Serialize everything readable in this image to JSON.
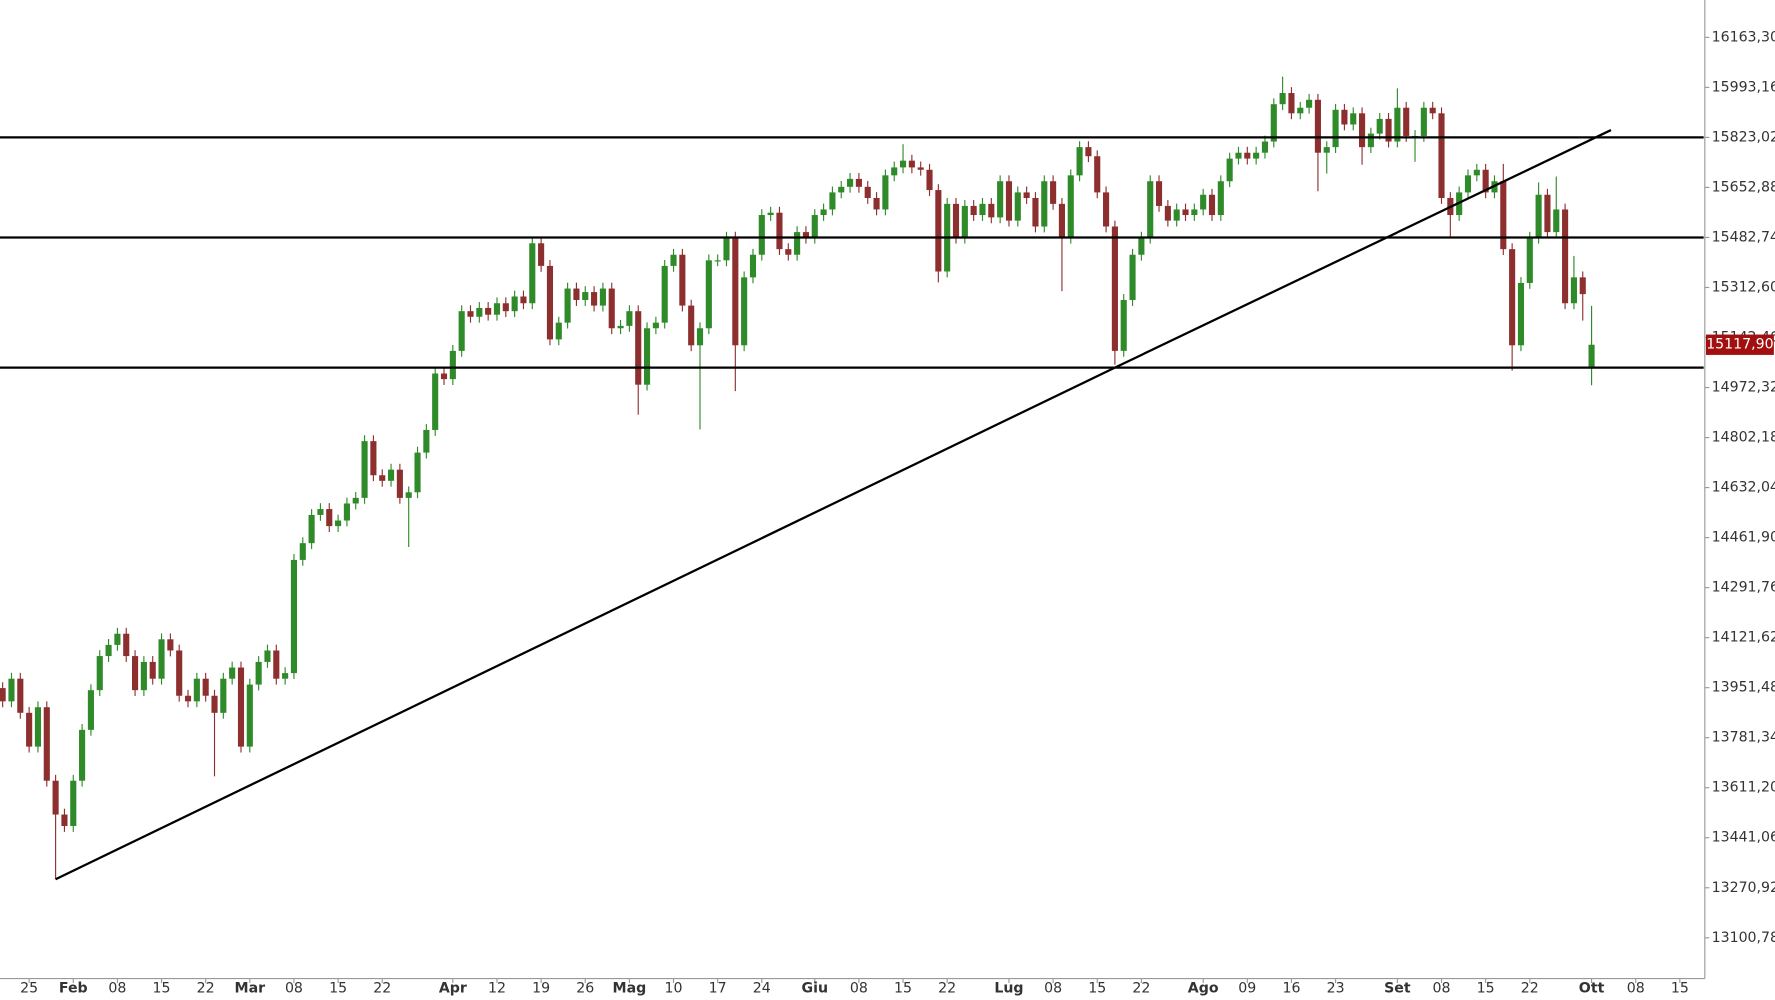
{
  "chart_data": {
    "type": "candlestick",
    "up_color": "#2f8a2a",
    "down_color": "#8e2f2f",
    "line_color": "#000000",
    "xlim": [
      -0.3,
      192.7
    ],
    "ylim": [
      12962.3,
      16290.4
    ],
    "yticks": [
      {
        "value": 13100.78,
        "label": "13100,78"
      },
      {
        "value": 13270.92,
        "label": "13270,92"
      },
      {
        "value": 13441.06,
        "label": "13441,06"
      },
      {
        "value": 13611.2,
        "label": "13611,20"
      },
      {
        "value": 13781.34,
        "label": "13781,34"
      },
      {
        "value": 13951.48,
        "label": "13951,48"
      },
      {
        "value": 14121.62,
        "label": "14121,62"
      },
      {
        "value": 14291.76,
        "label": "14291,76"
      },
      {
        "value": 14461.9,
        "label": "14461,90"
      },
      {
        "value": 14632.04,
        "label": "14632,04"
      },
      {
        "value": 14802.18,
        "label": "14802,18"
      },
      {
        "value": 14972.32,
        "label": "14972,32"
      },
      {
        "value": 15142.46,
        "label": "15142,46"
      },
      {
        "value": 15312.6,
        "label": "15312,60"
      },
      {
        "value": 15482.74,
        "label": "15482,74"
      },
      {
        "value": 15652.88,
        "label": "15652,88"
      },
      {
        "value": 15823.02,
        "label": "15823,02"
      },
      {
        "value": 15993.16,
        "label": "15993,16"
      },
      {
        "value": 16163.3,
        "label": "16163,30"
      }
    ],
    "xticks": [
      {
        "value": 3,
        "label": "25"
      },
      {
        "value": 8,
        "label": "Feb"
      },
      {
        "value": 13,
        "label": "08"
      },
      {
        "value": 18,
        "label": "15"
      },
      {
        "value": 23,
        "label": "22"
      },
      {
        "value": 28,
        "label": "Mar"
      },
      {
        "value": 33,
        "label": "08"
      },
      {
        "value": 38,
        "label": "15"
      },
      {
        "value": 43,
        "label": "22"
      },
      {
        "value": 51,
        "label": "Apr"
      },
      {
        "value": 56,
        "label": "12"
      },
      {
        "value": 61,
        "label": "19"
      },
      {
        "value": 66,
        "label": "26"
      },
      {
        "value": 71,
        "label": "Mag"
      },
      {
        "value": 76,
        "label": "10"
      },
      {
        "value": 81,
        "label": "17"
      },
      {
        "value": 86,
        "label": "24"
      },
      {
        "value": 92,
        "label": "Giu"
      },
      {
        "value": 97,
        "label": "08"
      },
      {
        "value": 102,
        "label": "15"
      },
      {
        "value": 107,
        "label": "22"
      },
      {
        "value": 114,
        "label": "Lug"
      },
      {
        "value": 119,
        "label": "08"
      },
      {
        "value": 124,
        "label": "15"
      },
      {
        "value": 129,
        "label": "22"
      },
      {
        "value": 136,
        "label": "Ago"
      },
      {
        "value": 141,
        "label": "09"
      },
      {
        "value": 146,
        "label": "16"
      },
      {
        "value": 151,
        "label": "23"
      },
      {
        "value": 158,
        "label": "Set"
      },
      {
        "value": 163,
        "label": "08"
      },
      {
        "value": 168,
        "label": "15"
      },
      {
        "value": 173,
        "label": "22"
      },
      {
        "value": 180,
        "label": "Ott"
      },
      {
        "value": 185,
        "label": "08"
      },
      {
        "value": 190,
        "label": "15"
      }
    ],
    "open": [
      13950,
      13905,
      13982,
      13866,
      13751,
      13885,
      13635,
      13520,
      13481,
      13635,
      13808,
      13943,
      14059,
      14097,
      14135,
      14059,
      13943,
      14039,
      13982,
      14116,
      14078,
      13924,
      13905,
      13982,
      13924,
      13866,
      13982,
      14020,
      13751,
      13962,
      14039,
      14078,
      13982,
      14001,
      14386,
      14443,
      14539,
      14559,
      14501,
      14520,
      14578,
      14597,
      14790,
      14674,
      14655,
      14693,
      14597,
      14616,
      14751,
      14828,
      15020,
      15001,
      15097,
      15232,
      15213,
      15243,
      15220,
      15259,
      15232,
      15282,
      15259,
      15463,
      15386,
      15136,
      15193,
      15309,
      15270,
      15297,
      15251,
      15309,
      15174,
      15182,
      15232,
      14982,
      15174,
      15193,
      15386,
      15424,
      15251,
      15116,
      15174,
      15405,
      15405,
      15482,
      15116,
      15347,
      15424,
      15559,
      15567,
      15443,
      15424,
      15501,
      15482,
      15559,
      15578,
      15636,
      15655,
      15682,
      15655,
      15617,
      15578,
      15694,
      15721,
      15744,
      15721,
      15713,
      15644,
      15367,
      15597,
      15482,
      15590,
      15559,
      15597,
      15551,
      15674,
      15540,
      15636,
      15617,
      15520,
      15674,
      15597,
      15482,
      15694,
      15790,
      15759,
      15636,
      15520,
      15097,
      15270,
      15424,
      15482,
      15674,
      15590,
      15540,
      15578,
      15559,
      15578,
      15628,
      15559,
      15674,
      15751,
      15771,
      15751,
      15771,
      15809,
      15936,
      15974,
      15905,
      15924,
      15951,
      15771,
      15790,
      15917,
      15867,
      15905,
      15790,
      15836,
      15886,
      15809,
      15924,
      15828,
      15828,
      15924,
      15905,
      15617,
      15559,
      15636,
      15694,
      15713,
      15636,
      15674,
      15443,
      15116,
      15328,
      15482,
      15628,
      15501,
      15578,
      15259,
      15347,
      15040
    ],
    "high": [
      13970,
      14002,
      14002,
      13886,
      13905,
      13905,
      13655,
      13540,
      13655,
      13828,
      13963,
      14079,
      14117,
      14155,
      14155,
      14079,
      14059,
      14059,
      14136,
      14136,
      14098,
      13944,
      14002,
      14002,
      13944,
      14002,
      14040,
      14040,
      13982,
      14059,
      14098,
      14098,
      14021,
      14406,
      14463,
      14559,
      14579,
      14579,
      14540,
      14598,
      14617,
      14810,
      14810,
      14694,
      14713,
      14713,
      14636,
      14771,
      14848,
      15040,
      15040,
      15117,
      15252,
      15252,
      15263,
      15263,
      15279,
      15279,
      15302,
      15302,
      15483,
      15483,
      15406,
      15213,
      15329,
      15329,
      15317,
      15317,
      15329,
      15329,
      15202,
      15252,
      15252,
      15194,
      15213,
      15406,
      15444,
      15444,
      15271,
      15194,
      15425,
      15425,
      15502,
      15502,
      15367,
      15444,
      15579,
      15587,
      15587,
      15463,
      15521,
      15521,
      15579,
      15598,
      15656,
      15675,
      15702,
      15702,
      15675,
      15637,
      15714,
      15741,
      15800,
      15764,
      15741,
      15733,
      15664,
      15617,
      15617,
      15610,
      15610,
      15617,
      15617,
      15694,
      15694,
      15656,
      15656,
      15637,
      15694,
      15694,
      15617,
      15714,
      15810,
      15810,
      15779,
      15656,
      15540,
      15290,
      15444,
      15502,
      15694,
      15694,
      15610,
      15598,
      15598,
      15598,
      15648,
      15648,
      15694,
      15771,
      15791,
      15791,
      15791,
      15829,
      15956,
      16030,
      15994,
      15944,
      15971,
      15971,
      15810,
      15937,
      15937,
      15925,
      15925,
      15856,
      15906,
      15906,
      15990,
      15944,
      15848,
      15944,
      15944,
      15925,
      15637,
      15656,
      15714,
      15733,
      15733,
      15694,
      15733,
      15463,
      15348,
      15502,
      15670,
      15648,
      15690,
      15598,
      15420,
      15367,
      15250
    ],
    "low": [
      13885,
      13885,
      13846,
      13731,
      13731,
      13615,
      13300,
      13461,
      13461,
      13615,
      13788,
      13923,
      14039,
      14077,
      14039,
      13923,
      13923,
      13962,
      13962,
      14058,
      13904,
      13885,
      13885,
      13904,
      13650,
      13846,
      13962,
      13731,
      13731,
      13942,
      14019,
      13962,
      13962,
      13981,
      14366,
      14423,
      14519,
      14481,
      14481,
      14500,
      14558,
      14577,
      14654,
      14635,
      14635,
      14577,
      14430,
      14596,
      14731,
      14808,
      14981,
      14981,
      15077,
      15193,
      15193,
      15200,
      15200,
      15212,
      15212,
      15239,
      15239,
      15366,
      15116,
      15116,
      15173,
      15250,
      15250,
      15231,
      15231,
      15154,
      15154,
      15162,
      14880,
      14962,
      15154,
      15173,
      15366,
      15231,
      15096,
      14830,
      15154,
      15385,
      15385,
      14960,
      15096,
      15327,
      15404,
      15539,
      15423,
      15404,
      15404,
      15462,
      15462,
      15539,
      15558,
      15616,
      15635,
      15635,
      15597,
      15558,
      15558,
      15674,
      15701,
      15701,
      15693,
      15624,
      15330,
      15347,
      15462,
      15462,
      15539,
      15539,
      15531,
      15531,
      15520,
      15520,
      15597,
      15500,
      15500,
      15577,
      15300,
      15462,
      15674,
      15739,
      15616,
      15500,
      15050,
      15077,
      15250,
      15404,
      15462,
      15570,
      15520,
      15520,
      15539,
      15539,
      15558,
      15539,
      15539,
      15654,
      15731,
      15731,
      15731,
      15751,
      15789,
      15916,
      15885,
      15885,
      15904,
      15640,
      15700,
      15770,
      15847,
      15847,
      15730,
      15770,
      15816,
      15789,
      15789,
      15808,
      15740,
      15808,
      15885,
      15597,
      15480,
      15539,
      15616,
      15674,
      15616,
      15616,
      15423,
      15030,
      15096,
      15308,
      15462,
      15481,
      15481,
      15239,
      15239,
      15200,
      14980
    ],
    "close": [
      13905,
      13982,
      13866,
      13751,
      13885,
      13635,
      13520,
      13481,
      13635,
      13808,
      13943,
      14059,
      14097,
      14135,
      14059,
      13943,
      14039,
      13982,
      14116,
      14078,
      13924,
      13905,
      13982,
      13924,
      13866,
      13982,
      14020,
      13751,
      13962,
      14039,
      14078,
      13982,
      14001,
      14386,
      14443,
      14539,
      14559,
      14501,
      14520,
      14578,
      14597,
      14790,
      14674,
      14655,
      14693,
      14597,
      14616,
      14751,
      14828,
      15020,
      15001,
      15097,
      15232,
      15213,
      15243,
      15220,
      15259,
      15232,
      15282,
      15259,
      15463,
      15386,
      15136,
      15193,
      15309,
      15270,
      15297,
      15251,
      15309,
      15174,
      15182,
      15232,
      14982,
      15174,
      15193,
      15386,
      15424,
      15251,
      15116,
      15174,
      15405,
      15405,
      15482,
      15116,
      15347,
      15424,
      15559,
      15567,
      15443,
      15424,
      15501,
      15482,
      15559,
      15578,
      15636,
      15655,
      15682,
      15655,
      15617,
      15578,
      15694,
      15721,
      15744,
      15721,
      15713,
      15644,
      15367,
      15597,
      15482,
      15590,
      15559,
      15597,
      15551,
      15674,
      15540,
      15636,
      15617,
      15520,
      15674,
      15597,
      15482,
      15694,
      15790,
      15759,
      15636,
      15520,
      15097,
      15270,
      15424,
      15482,
      15674,
      15590,
      15540,
      15578,
      15559,
      15578,
      15628,
      15559,
      15674,
      15751,
      15771,
      15751,
      15771,
      15809,
      15936,
      15974,
      15905,
      15924,
      15951,
      15771,
      15790,
      15917,
      15867,
      15905,
      15790,
      15836,
      15886,
      15809,
      15924,
      15828,
      15828,
      15924,
      15905,
      15617,
      15559,
      15636,
      15694,
      15713,
      15636,
      15674,
      15443,
      15116,
      15328,
      15482,
      15628,
      15501,
      15578,
      15259,
      15347,
      15290,
      15117.9
    ],
    "hlines": [
      15823.02,
      15482.74,
      15040
    ],
    "trendlines": [
      {
        "x": [
          6,
          126
        ],
        "y": [
          13300,
          15040
        ]
      },
      {
        "x": [
          126,
          182.2
        ],
        "y": [
          15040,
          15848
        ]
      }
    ],
    "last_price": {
      "value": 15117.9,
      "label": "15117,90",
      "color": "#a10f0f"
    }
  }
}
